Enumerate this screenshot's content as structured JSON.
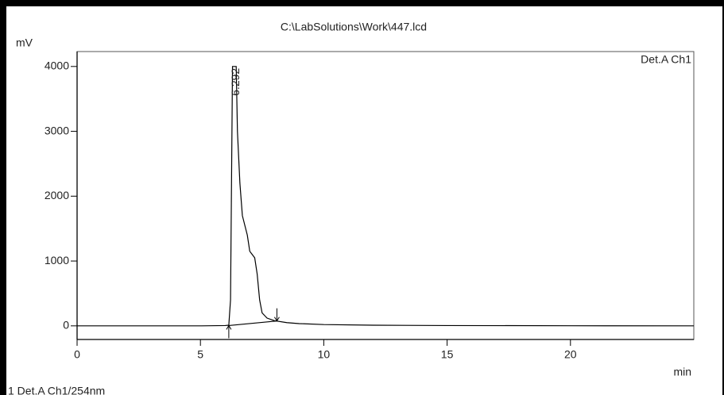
{
  "chart_data": {
    "type": "line",
    "title": "C:\\LabSolutions\\Work\\447.lcd",
    "ylabel": "mV",
    "xlabel": "min",
    "channel": "Det.A Ch1",
    "footer": "1 Det.A Ch1/254nm",
    "xlim": [
      0,
      25
    ],
    "ylim": [
      -210,
      4230
    ],
    "xticks": [
      0,
      5,
      10,
      15,
      20
    ],
    "yticks": [
      0,
      1000,
      2000,
      3000,
      4000
    ],
    "series": [
      {
        "color": "#000000",
        "x": [
          0,
          5,
          6.0,
          6.15,
          6.22,
          6.3,
          6.45,
          6.5,
          6.6,
          6.7,
          6.8,
          6.9,
          7.0,
          7.1,
          7.2,
          7.3,
          7.4,
          7.5,
          7.7,
          8.0,
          8.5,
          9,
          10,
          12,
          15,
          20,
          25
        ],
        "values": [
          0,
          0,
          5,
          10,
          400,
          4000,
          4000,
          3000,
          2200,
          1700,
          1550,
          1400,
          1150,
          1100,
          1050,
          800,
          400,
          200,
          120,
          80,
          50,
          35,
          20,
          10,
          5,
          2,
          0
        ]
      },
      {
        "color": "#000000",
        "baseline": true,
        "x": [
          6.15,
          8.1
        ],
        "values": [
          5,
          75
        ]
      }
    ],
    "annotations": [
      {
        "x": 6.292,
        "y": 4000,
        "text": "6.292"
      }
    ]
  }
}
